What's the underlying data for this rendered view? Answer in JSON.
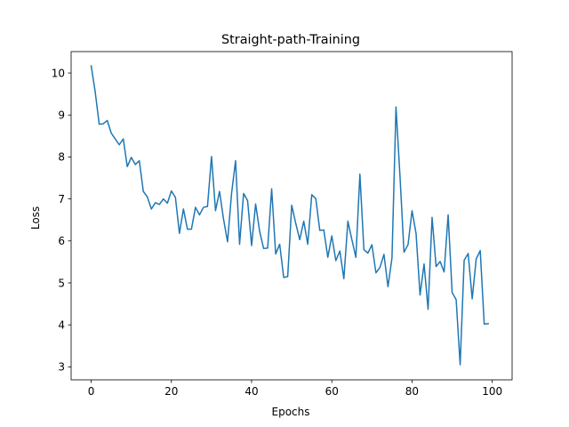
{
  "chart_data": {
    "type": "line",
    "title": "Straight-path-Training",
    "xlabel": "Epochs",
    "ylabel": "Loss",
    "xlim": [
      -5,
      104.95
    ],
    "ylim": [
      2.69,
      10.51
    ],
    "xticks": [
      0,
      20,
      40,
      60,
      80,
      100
    ],
    "yticks": [
      3,
      4,
      5,
      6,
      7,
      8,
      9,
      10
    ],
    "grid": false,
    "line_color": "#1f77b4",
    "series": [
      {
        "x": [
          0,
          1,
          2,
          3,
          4,
          5,
          6,
          7,
          8,
          9,
          10,
          11,
          12,
          13,
          14,
          15,
          16,
          17,
          18,
          19,
          20,
          21,
          22,
          23,
          24,
          25,
          26,
          27,
          28,
          29,
          30,
          31,
          32,
          33,
          34,
          35,
          36,
          37,
          38,
          39,
          40,
          41,
          42,
          43,
          44,
          45,
          46,
          47,
          48,
          49,
          50,
          51,
          52,
          53,
          54,
          55,
          56,
          57,
          58,
          59,
          60,
          61,
          62,
          63,
          64,
          65,
          66,
          67,
          68,
          69,
          70,
          71,
          72,
          73,
          74,
          75,
          76,
          77,
          78,
          79,
          80,
          81,
          82,
          83,
          84,
          85,
          86,
          87,
          88,
          89,
          90,
          91,
          92,
          93,
          94,
          95,
          96,
          97,
          98,
          99
        ],
        "values": [
          10.17,
          9.55,
          8.78,
          8.79,
          8.87,
          8.57,
          8.43,
          8.29,
          8.43,
          7.77,
          7.99,
          7.82,
          7.91,
          7.18,
          7.05,
          6.76,
          6.91,
          6.87,
          7.0,
          6.9,
          7.19,
          7.04,
          6.18,
          6.76,
          6.28,
          6.28,
          6.8,
          6.62,
          6.8,
          6.82,
          8.01,
          6.72,
          7.18,
          6.52,
          5.98,
          7.13,
          7.91,
          5.92,
          7.13,
          6.96,
          5.89,
          6.88,
          6.23,
          5.82,
          5.83,
          7.24,
          5.69,
          5.92,
          5.13,
          5.15,
          6.85,
          6.42,
          6.03,
          6.47,
          5.92,
          7.1,
          7.01,
          6.25,
          6.26,
          5.61,
          6.12,
          5.53,
          5.76,
          5.1,
          6.47,
          6.03,
          5.61,
          7.59,
          5.79,
          5.71,
          5.91,
          5.24,
          5.37,
          5.68,
          4.91,
          5.59,
          9.19,
          7.54,
          5.73,
          5.91,
          6.72,
          6.18,
          4.71,
          5.45,
          4.37,
          6.56,
          5.39,
          5.51,
          5.26,
          6.62,
          4.77,
          4.6,
          3.05,
          5.54,
          5.7,
          4.62,
          5.57,
          5.77,
          4.02,
          4.03
        ]
      }
    ]
  }
}
